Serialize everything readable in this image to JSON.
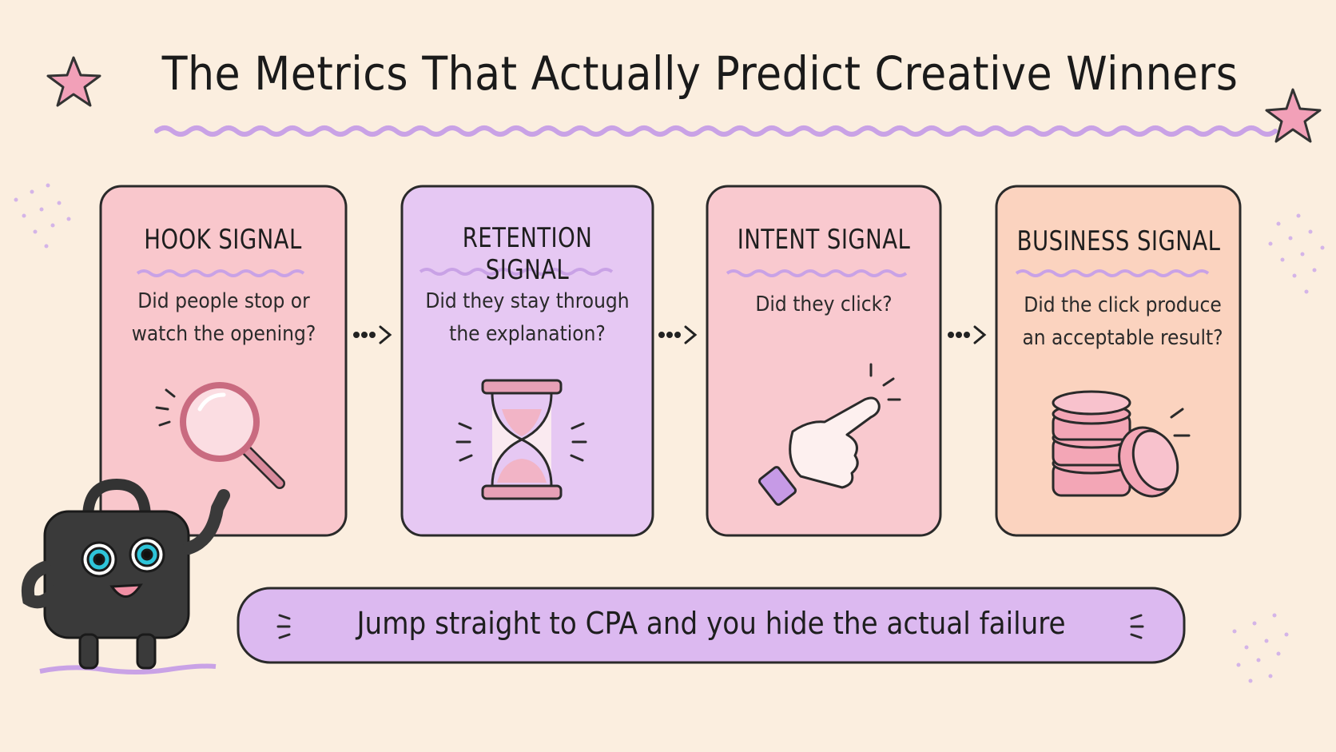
{
  "header": {
    "title": "The Metrics That Actually Predict Creative Winners"
  },
  "cards": [
    {
      "title": "HOOK SIGNAL",
      "question": "Did people stop or watch the opening?"
    },
    {
      "title": "RETENTION SIGNAL",
      "question": "Did they stay through the explanation?"
    },
    {
      "title": "INTENT SIGNAL",
      "question": "Did they click?"
    },
    {
      "title": "BUSINESS SIGNAL",
      "question": "Did the click produce an acceptable result?"
    }
  ],
  "banner": {
    "text": "Jump straight to CPA and you hide the actual failure"
  }
}
